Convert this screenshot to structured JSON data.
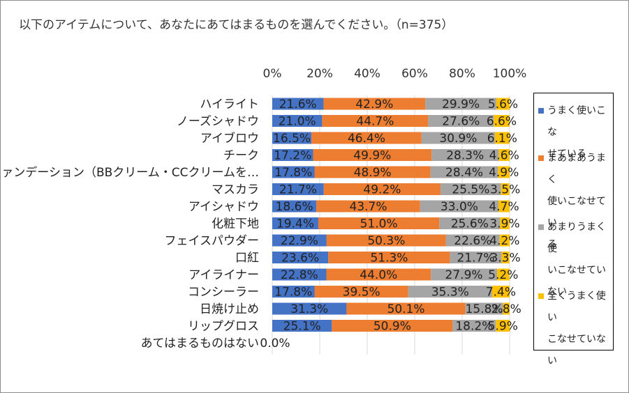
{
  "title": "以下のアイテムについて、あなたにあてはまるものを選んでください。（n=375）",
  "chart_data": {
    "type": "bar",
    "orientation": "horizontal",
    "stacked": true,
    "normalized_100_percent": true,
    "xlim": [
      0,
      100
    ],
    "xticks": [
      "0%",
      "20%",
      "40%",
      "60%",
      "80%",
      "100%"
    ],
    "gridlines": true,
    "legend_position": "right",
    "categories": [
      "ハイライト",
      "ノーズシャドウ",
      "アイブロウ",
      "チーク",
      "ファンデーション（BBクリーム・CCクリームを…",
      "マスカラ",
      "アイシャドウ",
      "化粧下地",
      "フェイスパウダー",
      "口紅",
      "アイライナー",
      "コンシーラー",
      "日焼け止め",
      "リップグロス",
      "あてはまるものはない"
    ],
    "series": [
      {
        "name": "うまく使いこなせている",
        "color": "#4472c4",
        "values": [
          21.6,
          21.0,
          16.5,
          17.2,
          17.8,
          21.7,
          18.6,
          19.4,
          22.9,
          23.6,
          22.8,
          17.8,
          31.3,
          25.1,
          0.0
        ],
        "labels": [
          "21.6%",
          "21.0%",
          "16.5%",
          "17.2%",
          "17.8%",
          "21.7%",
          "18.6%",
          "19.4%",
          "22.9%",
          "23.6%",
          "22.8%",
          "17.8%",
          "31.3%",
          "25.1%",
          "0.0%"
        ]
      },
      {
        "name": "まあまあうまく使いこなせている",
        "color": "#ed7d31",
        "values": [
          42.9,
          44.7,
          46.4,
          49.9,
          48.9,
          49.2,
          43.7,
          51.0,
          50.3,
          51.3,
          44.0,
          39.5,
          50.1,
          50.9,
          null
        ],
        "labels": [
          "42.9%",
          "44.7%",
          "46.4%",
          "49.9%",
          "48.9%",
          "49.2%",
          "43.7%",
          "51.0%",
          "50.3%",
          "51.3%",
          "44.0%",
          "39.5%",
          "50.1%",
          "50.9%",
          null
        ]
      },
      {
        "name": "あまりうまく使いこなせていない",
        "color": "#a5a5a5",
        "values": [
          29.9,
          27.6,
          30.9,
          28.3,
          28.4,
          25.5,
          33.0,
          25.6,
          22.6,
          21.7,
          27.9,
          35.3,
          15.8,
          18.2,
          null
        ],
        "labels": [
          "29.9%",
          "27.6%",
          "30.9%",
          "28.3%",
          "28.4%",
          "25.5%",
          "33.0%",
          "25.6%",
          "22.6%",
          "21.7%",
          "27.9%",
          "35.3%",
          "15.8%",
          "18.2%",
          null
        ]
      },
      {
        "name": "全くうまく使いこなせていない",
        "color": "#ffc000",
        "values": [
          5.6,
          6.6,
          6.1,
          4.6,
          4.9,
          3.5,
          4.7,
          3.9,
          4.2,
          3.3,
          5.2,
          7.4,
          2.8,
          5.9,
          null
        ],
        "labels": [
          "5.6%",
          "6.6%",
          "6.1%",
          "4.6%",
          "4.9%",
          "3.5%",
          "4.7%",
          "3.9%",
          "4.2%",
          "3.3%",
          "5.2%",
          "7.4%",
          "2.8%",
          "5.9%",
          null
        ]
      }
    ]
  },
  "legend": {
    "items": [
      {
        "lines": [
          "うまく使いこな",
          "せている"
        ],
        "color": "#4472c4"
      },
      {
        "lines": [
          "まあまあうまく",
          "使いこなせてい",
          "る"
        ],
        "color": "#ed7d31"
      },
      {
        "lines": [
          "あまりうまく使",
          "いこなせてい",
          "ない"
        ],
        "color": "#a5a5a5"
      },
      {
        "lines": [
          "全くうまく使い",
          "こなせていな",
          "い"
        ],
        "color": "#ffc000"
      }
    ]
  }
}
